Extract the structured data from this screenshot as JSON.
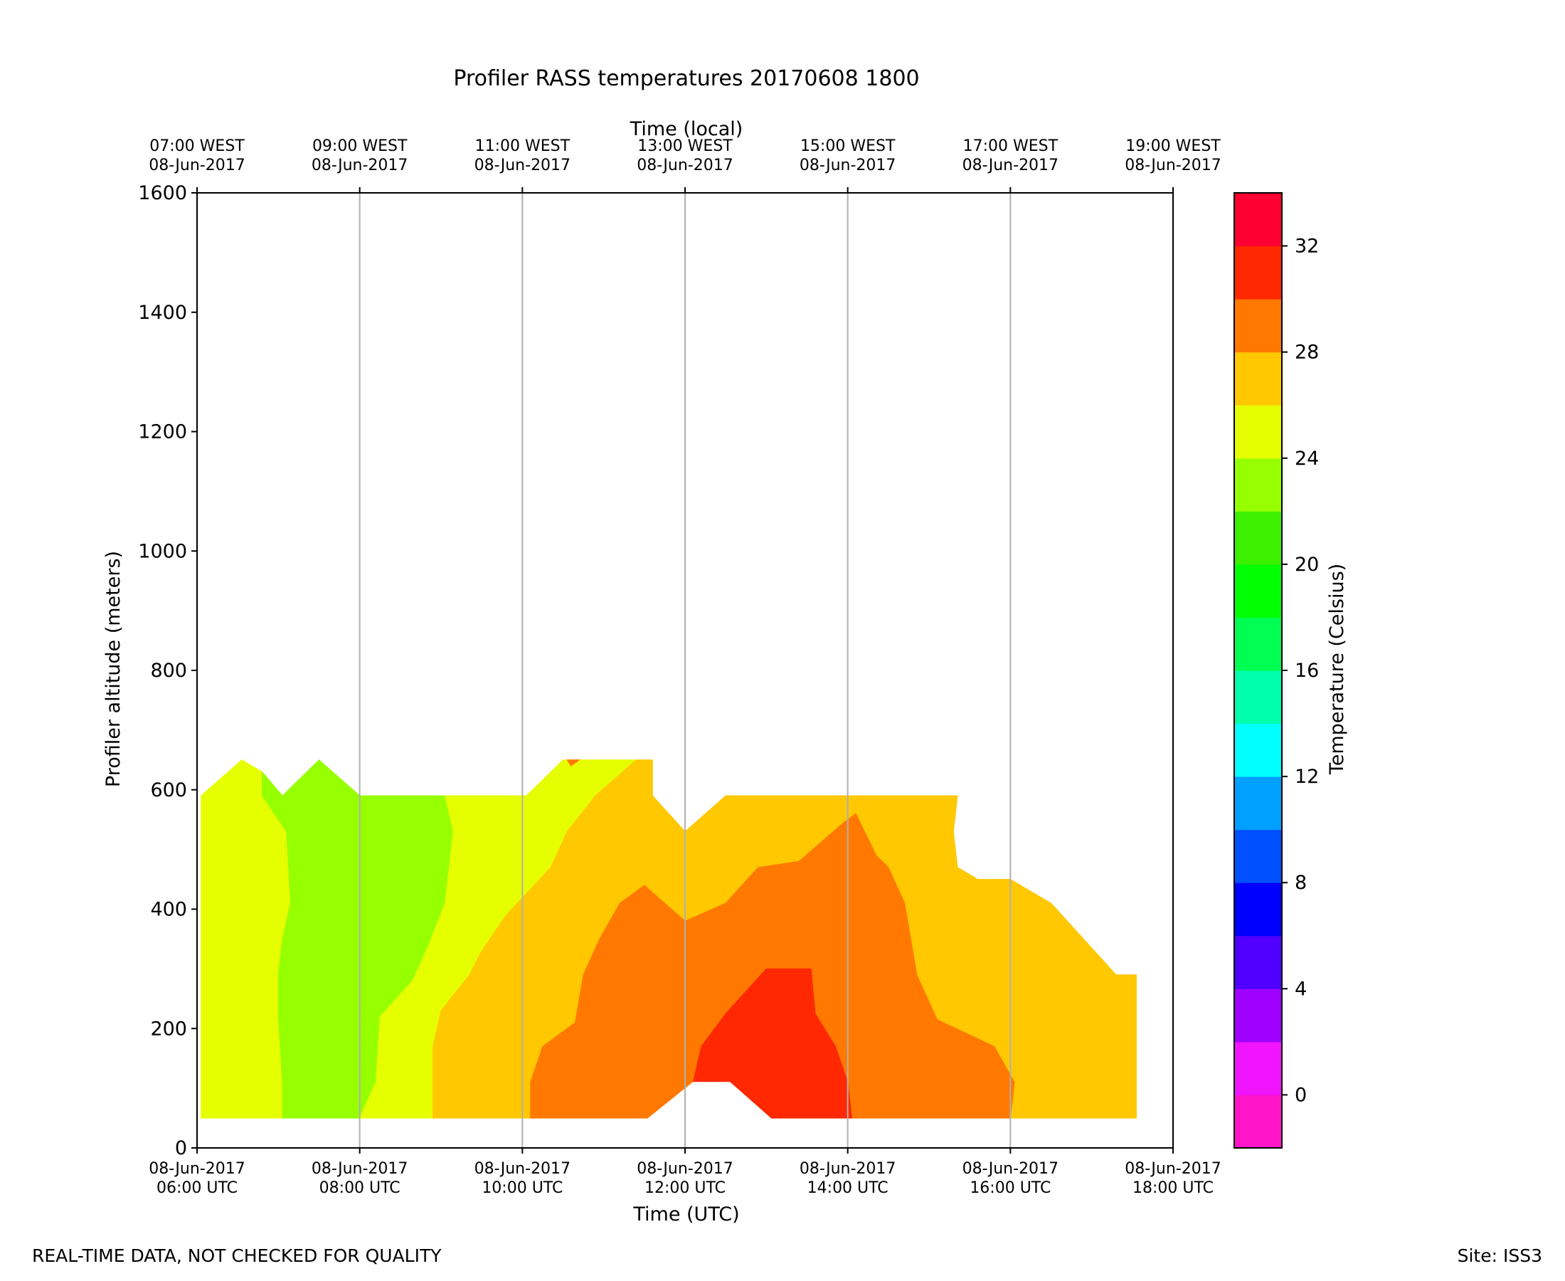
{
  "chart_data": {
    "type": "heatmap",
    "title": "Profiler RASS temperatures 20170608 1800",
    "xlabel": "Time (UTC)",
    "xlabel_top": "Time (local)",
    "ylabel": "Profiler altitude (meters)",
    "ylim": [
      0,
      1600
    ],
    "yticks": [
      0,
      200,
      400,
      600,
      800,
      1000,
      1200,
      1400,
      1600
    ],
    "xlim_hours_utc": [
      6,
      18
    ],
    "xticks_bottom": [
      {
        "hour": 6,
        "line1": "08-Jun-2017",
        "line2": "06:00 UTC"
      },
      {
        "hour": 8,
        "line1": "08-Jun-2017",
        "line2": "08:00 UTC"
      },
      {
        "hour": 10,
        "line1": "08-Jun-2017",
        "line2": "10:00 UTC"
      },
      {
        "hour": 12,
        "line1": "08-Jun-2017",
        "line2": "12:00 UTC"
      },
      {
        "hour": 14,
        "line1": "08-Jun-2017",
        "line2": "14:00 UTC"
      },
      {
        "hour": 16,
        "line1": "08-Jun-2017",
        "line2": "16:00 UTC"
      },
      {
        "hour": 18,
        "line1": "08-Jun-2017",
        "line2": "18:00 UTC"
      }
    ],
    "xticks_top": [
      {
        "hour": 6,
        "line1": "07:00 WEST",
        "line2": "08-Jun-2017"
      },
      {
        "hour": 8,
        "line1": "09:00 WEST",
        "line2": "08-Jun-2017"
      },
      {
        "hour": 10,
        "line1": "11:00 WEST",
        "line2": "08-Jun-2017"
      },
      {
        "hour": 12,
        "line1": "13:00 WEST",
        "line2": "08-Jun-2017"
      },
      {
        "hour": 14,
        "line1": "15:00 WEST",
        "line2": "08-Jun-2017"
      },
      {
        "hour": 16,
        "line1": "17:00 WEST",
        "line2": "08-Jun-2017"
      },
      {
        "hour": 18,
        "line1": "19:00 WEST",
        "line2": "08-Jun-2017"
      }
    ],
    "grid": "vertical",
    "colorbar": {
      "label": "Temperature (Celsius)",
      "range": [
        -2,
        34
      ],
      "ticks": [
        0,
        4,
        8,
        12,
        16,
        20,
        24,
        28,
        32
      ],
      "levels": [
        {
          "min": -2,
          "max": 0,
          "color": "#ff14c8"
        },
        {
          "min": 0,
          "max": 2,
          "color": "#f014ff"
        },
        {
          "min": 2,
          "max": 4,
          "color": "#a000ff"
        },
        {
          "min": 4,
          "max": 6,
          "color": "#5000ff"
        },
        {
          "min": 6,
          "max": 8,
          "color": "#0000ff"
        },
        {
          "min": 8,
          "max": 10,
          "color": "#0050ff"
        },
        {
          "min": 10,
          "max": 12,
          "color": "#00a0ff"
        },
        {
          "min": 12,
          "max": 14,
          "color": "#00ffff"
        },
        {
          "min": 14,
          "max": 16,
          "color": "#00ffaa"
        },
        {
          "min": 16,
          "max": 18,
          "color": "#00ff50"
        },
        {
          "min": 18,
          "max": 20,
          "color": "#00ff00"
        },
        {
          "min": 20,
          "max": 22,
          "color": "#3cf000"
        },
        {
          "min": 22,
          "max": 24,
          "color": "#96ff00"
        },
        {
          "min": 24,
          "max": 26,
          "color": "#e6ff00"
        },
        {
          "min": 26,
          "max": 28,
          "color": "#ffc800"
        },
        {
          "min": 28,
          "max": 30,
          "color": "#ff7800"
        },
        {
          "min": 30,
          "max": 32,
          "color": "#ff2800"
        },
        {
          "min": 32,
          "max": 34,
          "color": "#ff0032"
        }
      ]
    },
    "regions": [
      {
        "name": "yellow-left",
        "temp_c": 25,
        "color": "#e6ff00",
        "points": [
          [
            6.05,
            50
          ],
          [
            6.05,
            590
          ],
          [
            6.55,
            650
          ],
          [
            6.8,
            630
          ],
          [
            6.8,
            590
          ],
          [
            7.1,
            530
          ],
          [
            7.15,
            410
          ],
          [
            7.05,
            350
          ],
          [
            7.0,
            290
          ],
          [
            7.0,
            220
          ],
          [
            7.05,
            110
          ],
          [
            7.05,
            50
          ]
        ]
      },
      {
        "name": "green-west",
        "temp_c": 23,
        "color": "#96ff00",
        "points": [
          [
            7.05,
            50
          ],
          [
            7.05,
            110
          ],
          [
            7.0,
            220
          ],
          [
            7.0,
            290
          ],
          [
            7.05,
            350
          ],
          [
            7.15,
            410
          ],
          [
            7.1,
            530
          ],
          [
            6.8,
            590
          ],
          [
            6.8,
            630
          ],
          [
            7.05,
            590
          ],
          [
            7.5,
            650
          ],
          [
            8.0,
            590
          ],
          [
            9.05,
            590
          ],
          [
            9.15,
            530
          ],
          [
            9.05,
            410
          ],
          [
            8.85,
            340
          ],
          [
            8.65,
            280
          ],
          [
            8.25,
            220
          ],
          [
            8.2,
            110
          ],
          [
            8.0,
            50
          ]
        ]
      },
      {
        "name": "yellow-mid",
        "temp_c": 25,
        "color": "#e6ff00",
        "points": [
          [
            8.0,
            50
          ],
          [
            8.2,
            110
          ],
          [
            8.25,
            220
          ],
          [
            8.65,
            280
          ],
          [
            8.85,
            340
          ],
          [
            9.05,
            410
          ],
          [
            9.15,
            530
          ],
          [
            9.05,
            590
          ],
          [
            10.05,
            590
          ],
          [
            10.5,
            650
          ],
          [
            11.4,
            650
          ],
          [
            10.9,
            590
          ],
          [
            10.55,
            530
          ],
          [
            10.35,
            470
          ],
          [
            9.8,
            390
          ],
          [
            9.5,
            330
          ],
          [
            9.35,
            290
          ],
          [
            9.0,
            230
          ],
          [
            8.9,
            170
          ],
          [
            8.9,
            50
          ]
        ]
      },
      {
        "name": "gold-mid",
        "temp_c": 27,
        "color": "#ffc800",
        "points": [
          [
            8.9,
            50
          ],
          [
            8.9,
            170
          ],
          [
            9.0,
            230
          ],
          [
            9.35,
            290
          ],
          [
            9.5,
            330
          ],
          [
            9.8,
            390
          ],
          [
            10.35,
            470
          ],
          [
            10.55,
            530
          ],
          [
            10.9,
            590
          ],
          [
            11.4,
            650
          ],
          [
            11.6,
            650
          ],
          [
            11.6,
            590
          ],
          [
            12.0,
            530
          ],
          [
            12.5,
            590
          ],
          [
            15.35,
            590
          ],
          [
            15.3,
            530
          ],
          [
            15.35,
            470
          ],
          [
            15.6,
            450
          ],
          [
            16.0,
            450
          ],
          [
            16.5,
            410
          ],
          [
            17.3,
            290
          ],
          [
            17.55,
            290
          ],
          [
            17.55,
            50
          ],
          [
            16.0,
            50
          ],
          [
            16.05,
            110
          ],
          [
            15.8,
            170
          ],
          [
            15.1,
            215
          ],
          [
            14.85,
            290
          ],
          [
            14.7,
            410
          ],
          [
            14.5,
            470
          ],
          [
            14.35,
            490
          ],
          [
            14.1,
            560
          ],
          [
            13.95,
            545
          ],
          [
            13.4,
            480
          ],
          [
            12.9,
            470
          ],
          [
            12.5,
            410
          ],
          [
            12.0,
            380
          ],
          [
            11.5,
            440
          ],
          [
            11.2,
            410
          ],
          [
            10.95,
            350
          ],
          [
            10.75,
            290
          ],
          [
            10.65,
            210
          ],
          [
            10.25,
            170
          ],
          [
            10.1,
            110
          ],
          [
            10.1,
            50
          ]
        ]
      },
      {
        "name": "orange-tiny",
        "temp_c": 29,
        "color": "#ff7800",
        "points": [
          [
            10.55,
            650
          ],
          [
            10.7,
            650
          ],
          [
            10.6,
            640
          ]
        ]
      },
      {
        "name": "orange-center",
        "temp_c": 29,
        "color": "#ff7800",
        "points": [
          [
            10.1,
            50
          ],
          [
            10.1,
            110
          ],
          [
            10.25,
            170
          ],
          [
            10.65,
            210
          ],
          [
            10.75,
            290
          ],
          [
            10.95,
            350
          ],
          [
            11.2,
            410
          ],
          [
            11.5,
            440
          ],
          [
            12.0,
            380
          ],
          [
            12.5,
            410
          ],
          [
            12.9,
            470
          ],
          [
            13.4,
            480
          ],
          [
            13.95,
            545
          ],
          [
            14.1,
            560
          ],
          [
            14.35,
            490
          ],
          [
            14.5,
            470
          ],
          [
            14.7,
            410
          ],
          [
            14.85,
            290
          ],
          [
            15.1,
            215
          ],
          [
            15.8,
            170
          ],
          [
            16.05,
            110
          ],
          [
            16.0,
            50
          ],
          [
            14.05,
            50
          ],
          [
            14.0,
            110
          ],
          [
            13.85,
            170
          ],
          [
            13.6,
            225
          ],
          [
            13.55,
            300
          ],
          [
            13.0,
            300
          ],
          [
            12.5,
            225
          ],
          [
            12.2,
            170
          ],
          [
            12.1,
            110
          ],
          [
            11.55,
            50
          ]
        ]
      },
      {
        "name": "red-center",
        "temp_c": 31,
        "color": "#ff2800",
        "points": [
          [
            12.1,
            110
          ],
          [
            12.2,
            170
          ],
          [
            12.5,
            225
          ],
          [
            13.0,
            300
          ],
          [
            13.55,
            300
          ],
          [
            13.6,
            225
          ],
          [
            13.85,
            170
          ],
          [
            14.0,
            110
          ],
          [
            14.05,
            50
          ],
          [
            13.05,
            50
          ],
          [
            12.55,
            110
          ]
        ]
      },
      {
        "name": "white-gap",
        "temp_c": null,
        "color": "#ffffff",
        "points": [
          [
            11.55,
            50
          ],
          [
            12.1,
            110
          ],
          [
            12.55,
            110
          ],
          [
            13.05,
            50
          ]
        ]
      }
    ]
  },
  "footer": {
    "left": "REAL-TIME DATA, NOT CHECKED FOR QUALITY",
    "right": "Site: ISS3"
  }
}
